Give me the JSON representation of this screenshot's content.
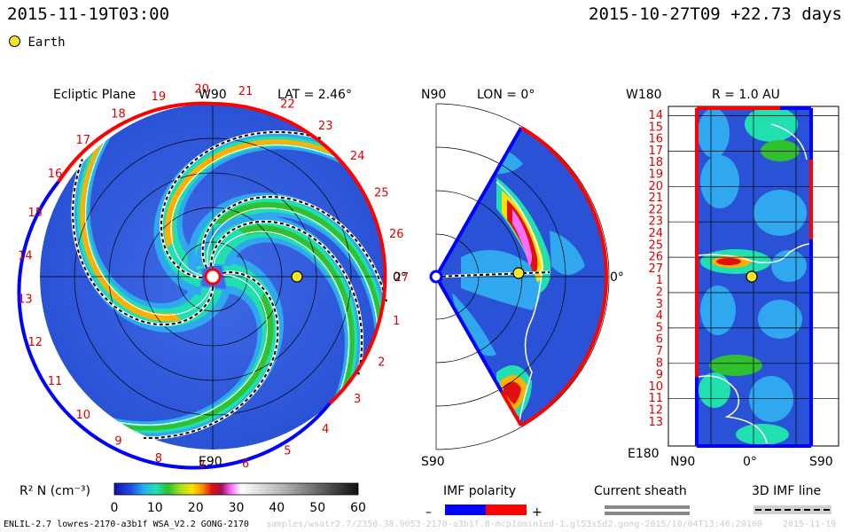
{
  "header": {
    "left_time": "2015-11-19T03:00",
    "right_time": "2015-10-27T09 +22.73 days",
    "earth_legend": "Earth"
  },
  "colors": {
    "earth": "#f5e52a",
    "positive_polarity": "#ff0000",
    "negative_polarity": "#0000ff",
    "sheath": "#888888"
  },
  "ecliptic": {
    "title": "Ecliptic Plane",
    "top_label": "W90",
    "bottom_label": "E90",
    "lat_label": "LAT = 2.46°",
    "zero_label": "0°",
    "sector_numbers": [
      "1",
      "2",
      "3",
      "4",
      "5",
      "6",
      "7",
      "8",
      "9",
      "10",
      "11",
      "12",
      "13",
      "14",
      "15",
      "16",
      "17",
      "18",
      "19",
      "20",
      "21",
      "22",
      "23",
      "24",
      "25",
      "26",
      "27"
    ]
  },
  "meridional": {
    "top_label": "N90",
    "bottom_label": "S90",
    "lon_label": "LON = 0°",
    "zero_label": "0°"
  },
  "radial_map": {
    "top_left_label": "W180",
    "bottom_left_label": "E180",
    "r_label": "R = 1.0 AU",
    "x_labels": [
      "N90",
      "0°",
      "S90"
    ],
    "y_labels": [
      "14",
      "15",
      "16",
      "17",
      "18",
      "19",
      "20",
      "21",
      "22",
      "23",
      "24",
      "25",
      "26",
      "27",
      "1",
      "2",
      "3",
      "4",
      "5",
      "6",
      "7",
      "8",
      "9",
      "10",
      "11",
      "12",
      "13"
    ]
  },
  "chart_data": {
    "type": "heatmap",
    "colorbar": {
      "label": "R² N (cm⁻³)",
      "min": 0,
      "max": 60,
      "ticks": [
        "0",
        "10",
        "20",
        "30",
        "40",
        "50",
        "60"
      ]
    }
  },
  "legends": {
    "imf_polarity": "IMF polarity",
    "minus": "–",
    "plus": "+",
    "current_sheath": "Current sheath",
    "imf_line": "3D IMF line"
  },
  "footer": {
    "model": "ENLIL-2.7 lowres-2170-a3b1f WSA_V2.2 GONG-2170",
    "path": "samples/wsatr2.7/2350.38.9053-2170-a3b1f.8-mcp1omin1ed-1.gl53s5d2.gong-2015/10/04T13:46:20100",
    "stamp": "2015-11-19"
  }
}
